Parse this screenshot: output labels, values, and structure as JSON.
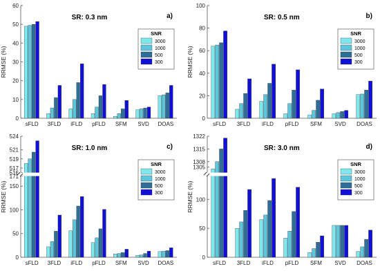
{
  "chart_data": [
    {
      "type": "bar",
      "panel_label": "a)",
      "title": "SR: 0.3 nm",
      "ylabel": "RRMSE (%)",
      "ylim": [
        0,
        60
      ],
      "yticks": [
        0,
        10,
        20,
        30,
        40,
        50,
        60
      ],
      "categories": [
        "sFLD",
        "3FLD",
        "iFLD",
        "pFLD",
        "SFM",
        "SVD",
        "DOAS"
      ],
      "legend_title": "SNR",
      "legend_position": "top-right",
      "series": [
        {
          "name": "3000",
          "color": "#7fe8ee",
          "values": [
            49,
            2.5,
            5,
            2.5,
            1,
            4.5,
            12
          ]
        },
        {
          "name": "1000",
          "color": "#5ec6dc",
          "values": [
            49.5,
            5.5,
            10,
            6,
            2.5,
            5,
            12.5
          ]
        },
        {
          "name": "500",
          "color": "#2e6f99",
          "values": [
            50,
            11,
            19,
            12,
            5,
            5.5,
            13.5
          ]
        },
        {
          "name": "300",
          "color": "#1010d6",
          "values": [
            51.5,
            17.5,
            29,
            18,
            9.5,
            6,
            17.5
          ]
        }
      ]
    },
    {
      "type": "bar",
      "panel_label": "b)",
      "title": "SR: 0.5 nm",
      "ylabel": "RRMSE (%)",
      "ylim": [
        0,
        100
      ],
      "yticks": [
        0,
        20,
        40,
        60,
        80,
        100
      ],
      "categories": [
        "sFLD",
        "3FLD",
        "iFLD",
        "pFLD",
        "SFM",
        "SVD",
        "DOAS"
      ],
      "legend_title": "SNR",
      "legend_position": "top-right",
      "series": [
        {
          "name": "3000",
          "color": "#7fe8ee",
          "values": [
            64,
            8,
            15,
            4,
            3,
            4,
            21
          ]
        },
        {
          "name": "1000",
          "color": "#5ec6dc",
          "values": [
            65,
            13,
            21,
            13,
            7,
            5,
            21.5
          ]
        },
        {
          "name": "500",
          "color": "#2e6f99",
          "values": [
            67,
            22,
            31,
            25,
            16,
            6,
            25
          ]
        },
        {
          "name": "300",
          "color": "#1010d6",
          "values": [
            77.5,
            35,
            48,
            43,
            26,
            7,
            33
          ]
        }
      ]
    },
    {
      "type": "bar",
      "panel_label": "c)",
      "title": "SR: 1.0 nm",
      "ylabel": "RRMSE (%)",
      "axis_break": true,
      "ylim_lower": [
        0,
        171
      ],
      "ylim_upper": [
        516,
        524
      ],
      "yticks_lower": [
        0,
        50,
        100,
        150,
        171
      ],
      "yticks_upper": [
        516,
        517,
        519,
        521,
        524
      ],
      "categories": [
        "sFLD",
        "3FLD",
        "iFLD",
        "pFLD",
        "SFM",
        "SVD",
        "DOAS"
      ],
      "legend_title": "SNR",
      "legend_position": "top-right",
      "series": [
        {
          "name": "3000",
          "color": "#7fe8ee",
          "values": [
            518,
            22,
            56,
            31,
            7,
            4,
            12
          ]
        },
        {
          "name": "1000",
          "color": "#5ec6dc",
          "values": [
            519,
            33,
            79,
            41,
            8,
            5,
            13
          ]
        },
        {
          "name": "500",
          "color": "#2e6f99",
          "values": [
            520.5,
            55,
            108,
            60,
            10,
            8,
            14
          ]
        },
        {
          "name": "300",
          "color": "#1010d6",
          "values": [
            523,
            89,
            128,
            101,
            17,
            13,
            20
          ]
        }
      ]
    },
    {
      "type": "bar",
      "panel_label": "d)",
      "title": "SR: 3.0 nm",
      "ylabel": "RRMSE (%)",
      "axis_break": true,
      "ylim_lower": [
        0,
        140
      ],
      "ylim_upper": [
        1302,
        1322
      ],
      "yticks_lower": [
        0,
        50,
        100
      ],
      "yticks_upper": [
        1305,
        1308,
        1315,
        1322
      ],
      "categories": [
        "sFLD",
        "3FLD",
        "iFLD",
        "pFLD",
        "SFM",
        "SVD",
        "DOAS"
      ],
      "legend_title": "SNR",
      "legend_position": "top-right",
      "series": [
        {
          "name": "3000",
          "color": "#7fe8ee",
          "values": [
            1304,
            50,
            65,
            33,
            8,
            55,
            10
          ]
        },
        {
          "name": "1000",
          "color": "#5ec6dc",
          "values": [
            1308,
            61,
            73,
            45,
            15,
            55,
            18
          ]
        },
        {
          "name": "500",
          "color": "#2e6f99",
          "values": [
            1315,
            81,
            98,
            79,
            26,
            55,
            31
          ]
        },
        {
          "name": "300",
          "color": "#1010d6",
          "values": [
            1321,
            117,
            136,
            121,
            37,
            55,
            47
          ]
        }
      ]
    }
  ]
}
